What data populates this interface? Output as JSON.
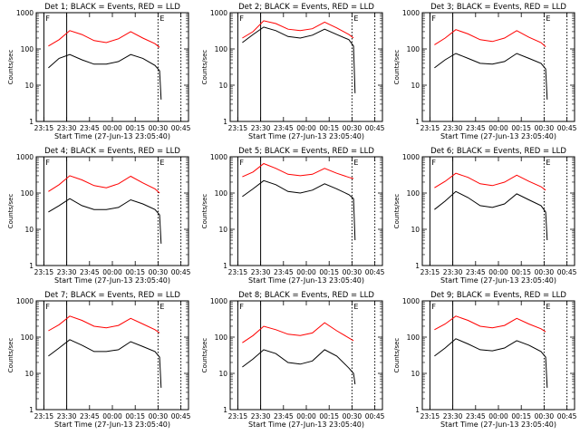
{
  "chart_data": {
    "type": "line",
    "xlabel": "Start Time (27-Jun-13 23:05:40)",
    "ylabel": "Counts/sec",
    "yscale": "log",
    "ylim": [
      1,
      1000
    ],
    "y_tick_labels": [
      "1",
      "10",
      "100",
      "1000"
    ],
    "xlim": [
      "23:10",
      "00:50"
    ],
    "x_tick_labels": [
      "23:15",
      "23:30",
      "23:45",
      "00:00",
      "00:15",
      "00:30",
      "00:45"
    ],
    "solid_markers": [
      "23:15",
      "23:30"
    ],
    "dotted_markers": [
      "00:30",
      "00:45"
    ],
    "marker_letters": [
      "F",
      "E"
    ],
    "series_colors": {
      "events": "#000000",
      "lld": "#ff0000"
    },
    "time_points": [
      "23:18",
      "23:25",
      "23:32",
      "23:40",
      "23:48",
      "23:56",
      "00:04",
      "00:12",
      "00:20",
      "00:28",
      "00:31",
      "00:32"
    ],
    "panels": [
      {
        "title": "Det 1; BLACK = Events, RED = LLD",
        "events": [
          30,
          55,
          70,
          50,
          38,
          38,
          45,
          70,
          55,
          35,
          25,
          4
        ],
        "lld": [
          120,
          180,
          320,
          250,
          170,
          150,
          190,
          300,
          200,
          140,
          110,
          null
        ]
      },
      {
        "title": "Det 2; BLACK = Events, RED = LLD",
        "events": [
          150,
          250,
          400,
          320,
          220,
          200,
          240,
          350,
          250,
          180,
          120,
          6
        ],
        "lld": [
          200,
          300,
          600,
          500,
          350,
          320,
          360,
          550,
          380,
          250,
          200,
          null
        ]
      },
      {
        "title": "Det 3; BLACK = Events, RED = LLD",
        "events": [
          30,
          50,
          75,
          55,
          40,
          38,
          45,
          75,
          55,
          40,
          28,
          4
        ],
        "lld": [
          130,
          200,
          340,
          260,
          180,
          160,
          200,
          320,
          210,
          150,
          115,
          null
        ]
      },
      {
        "title": "Det 4; BLACK = Events, RED = LLD",
        "events": [
          30,
          45,
          70,
          45,
          35,
          35,
          40,
          65,
          50,
          35,
          25,
          4
        ],
        "lld": [
          110,
          170,
          300,
          230,
          160,
          140,
          180,
          290,
          190,
          130,
          100,
          null
        ]
      },
      {
        "title": "Det 5; BLACK = Events, RED = LLD",
        "events": [
          80,
          130,
          220,
          170,
          110,
          100,
          120,
          180,
          130,
          90,
          70,
          5
        ],
        "lld": [
          280,
          380,
          650,
          480,
          330,
          300,
          330,
          480,
          350,
          270,
          250,
          null
        ]
      },
      {
        "title": "Det 6; BLACK = Events, RED = LLD",
        "events": [
          35,
          60,
          110,
          75,
          45,
          40,
          50,
          95,
          65,
          45,
          30,
          5
        ],
        "lld": [
          140,
          210,
          350,
          270,
          180,
          160,
          200,
          310,
          210,
          150,
          120,
          null
        ]
      },
      {
        "title": "Det 7; BLACK = Events, RED = LLD",
        "events": [
          30,
          50,
          85,
          60,
          40,
          40,
          45,
          75,
          55,
          40,
          28,
          4
        ],
        "lld": [
          150,
          220,
          380,
          290,
          200,
          180,
          210,
          330,
          230,
          160,
          130,
          null
        ]
      },
      {
        "title": "Det 8; BLACK = Events, RED = LLD",
        "events": [
          15,
          25,
          45,
          35,
          20,
          18,
          22,
          45,
          30,
          14,
          10,
          5
        ],
        "lld": [
          70,
          110,
          200,
          160,
          120,
          110,
          130,
          250,
          150,
          95,
          80,
          null
        ]
      },
      {
        "title": "Det 9; BLACK = Events, RED = LLD",
        "events": [
          30,
          50,
          90,
          65,
          45,
          42,
          50,
          80,
          60,
          40,
          28,
          4
        ],
        "lld": [
          160,
          230,
          380,
          290,
          200,
          180,
          210,
          330,
          230,
          170,
          140,
          null
        ]
      }
    ]
  }
}
